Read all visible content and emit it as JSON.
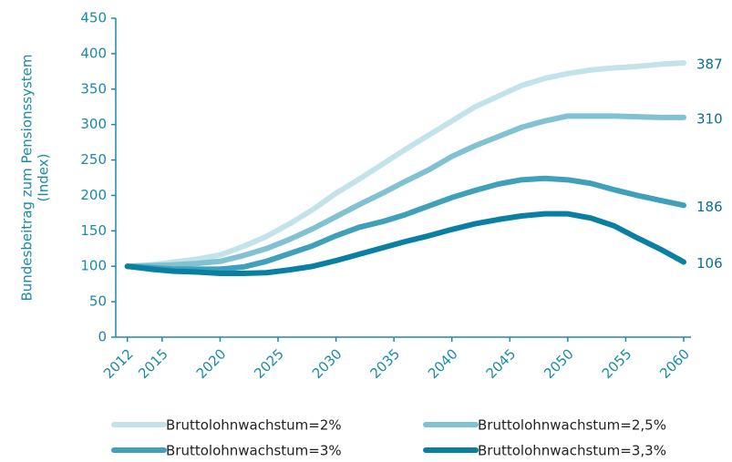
{
  "chart_data": {
    "type": "line",
    "ylabel": [
      "Bundesbeitrag zum Pensionssystem",
      "(Index)"
    ],
    "x": [
      2012,
      2014,
      2016,
      2018,
      2020,
      2022,
      2024,
      2026,
      2028,
      2030,
      2032,
      2034,
      2036,
      2038,
      2040,
      2042,
      2044,
      2046,
      2048,
      2050,
      2052,
      2054,
      2056,
      2058,
      2060
    ],
    "series": [
      {
        "name": "Bruttolohnwachstum=2%",
        "color": "#c3e3ea",
        "values": [
          100,
          102,
          106,
          110,
          116,
          128,
          142,
          160,
          180,
          203,
          223,
          244,
          265,
          285,
          305,
          325,
          340,
          355,
          365,
          372,
          377,
          380,
          382,
          385,
          387
        ]
      },
      {
        "name": "Bruttolohnwachstum=2,5%",
        "color": "#80c1d2",
        "values": [
          100,
          101,
          102,
          104,
          107,
          115,
          125,
          138,
          153,
          170,
          187,
          203,
          220,
          236,
          255,
          270,
          283,
          296,
          305,
          312,
          312,
          312,
          311,
          310,
          310
        ]
      },
      {
        "name": "Bruttolohnwachstum=3%",
        "color": "#3fa0bb",
        "values": [
          100,
          98,
          96,
          96,
          96,
          99,
          107,
          118,
          129,
          143,
          155,
          163,
          173,
          185,
          197,
          207,
          216,
          222,
          224,
          222,
          217,
          208,
          200,
          193,
          186
        ]
      },
      {
        "name": "Bruttolohnwachstum=3,3%",
        "color": "#0a7fa4",
        "values": [
          100,
          96,
          93,
          92,
          90,
          90,
          91,
          95,
          100,
          108,
          117,
          126,
          135,
          143,
          152,
          160,
          166,
          171,
          174,
          174,
          168,
          157,
          140,
          124,
          106
        ]
      }
    ],
    "xlim": [
      2011,
      2060
    ],
    "xticks": [
      2012,
      2015,
      2020,
      2025,
      2030,
      2035,
      2040,
      2045,
      2050,
      2055,
      2060
    ],
    "ylim": [
      0,
      450
    ],
    "yticks": [
      0,
      50,
      100,
      150,
      200,
      250,
      300,
      350,
      400,
      450
    ],
    "grid": false,
    "legend": "bottom"
  }
}
